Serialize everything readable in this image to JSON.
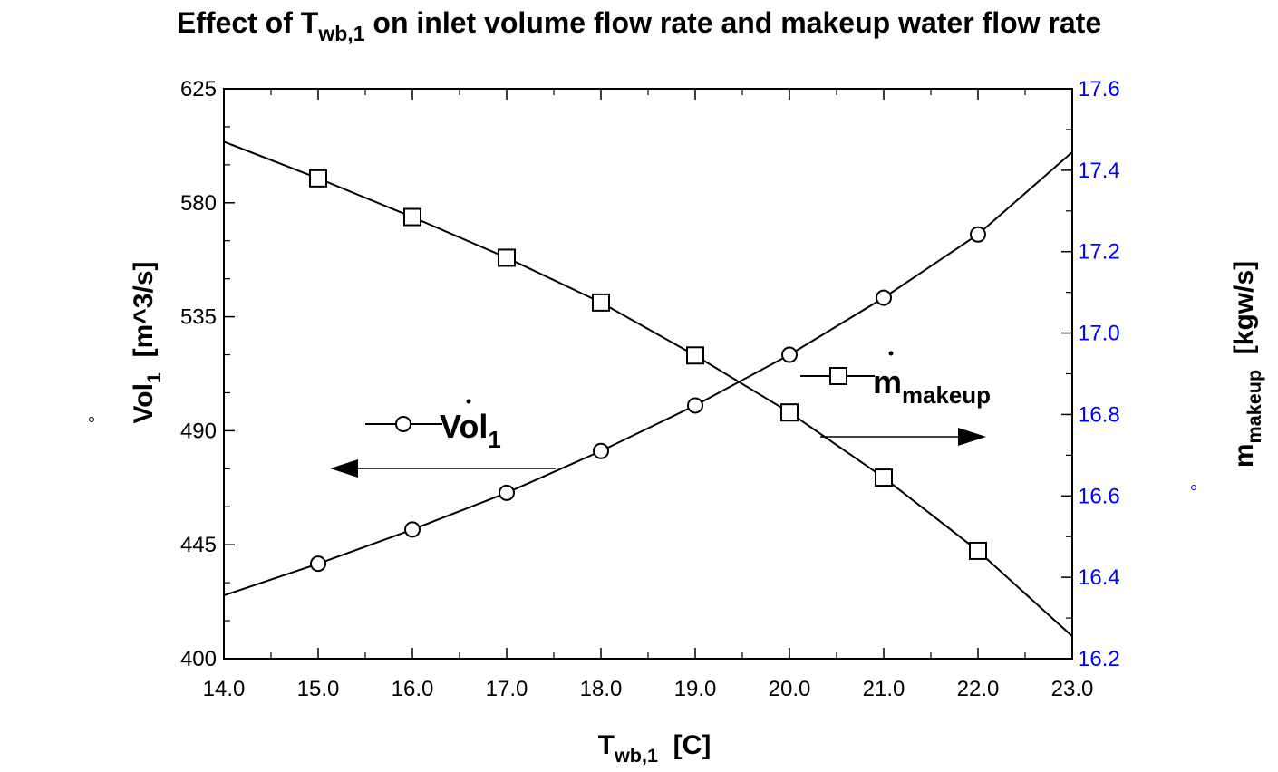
{
  "chart_data": {
    "type": "line",
    "title": {
      "main": "Effect of T",
      "sub": "wb,1",
      "rest": " on inlet volume flow rate and makeup water flow rate"
    },
    "xlabel": {
      "main": "T",
      "sub": "wb,1",
      "unit": "  [C]"
    },
    "ylabel_left": {
      "main": "Vol",
      "sub": "1",
      "unit": "  [m^3/s]"
    },
    "ylabel_right": {
      "main": "m",
      "sub": "makeup",
      "unit": "  [kgw/s]"
    },
    "xlim": [
      14.0,
      23.0
    ],
    "ylim_left": [
      400,
      625
    ],
    "ylim_right": [
      16.2,
      17.6
    ],
    "x_ticks": [
      "14.0",
      "15.0",
      "16.0",
      "17.0",
      "18.0",
      "19.0",
      "20.0",
      "21.0",
      "22.0",
      "23.0"
    ],
    "y_ticks_left": [
      "400",
      "445",
      "490",
      "535",
      "580",
      "625"
    ],
    "y_ticks_right": [
      "16.2",
      "16.4",
      "16.6",
      "16.8",
      "17.0",
      "17.2",
      "17.4",
      "17.6"
    ],
    "series": [
      {
        "name": "Vol_1",
        "axis": "left",
        "marker": "circle",
        "line_x": [
          14,
          15,
          16,
          17,
          18,
          19,
          20,
          21,
          22,
          23
        ],
        "line_y": [
          425,
          437.5,
          451,
          465.5,
          482,
          500,
          520,
          542.5,
          567.5,
          600
        ],
        "marker_x": [
          15,
          16,
          17,
          18,
          19,
          20,
          21,
          22
        ],
        "marker_y": [
          437.5,
          451,
          465.5,
          482,
          500,
          520,
          542.5,
          567.5
        ]
      },
      {
        "name": "m_makeup",
        "axis": "right",
        "marker": "square",
        "line_x": [
          14,
          15,
          16,
          17,
          18,
          19,
          20,
          21,
          22,
          23
        ],
        "line_y": [
          17.47,
          17.38,
          17.285,
          17.185,
          17.075,
          16.945,
          16.805,
          16.645,
          16.465,
          16.255
        ],
        "marker_x": [
          15,
          16,
          17,
          18,
          19,
          20,
          21,
          22
        ],
        "marker_y": [
          17.38,
          17.285,
          17.185,
          17.075,
          16.945,
          16.805,
          16.645,
          16.465
        ]
      }
    ],
    "legend": {
      "vol": {
        "main": "Vol",
        "sub": "1"
      },
      "makeup": {
        "main": "m",
        "sub": "makeup"
      }
    },
    "colors": {
      "axis": "#000000",
      "right_ticks": "#0000ff"
    }
  }
}
